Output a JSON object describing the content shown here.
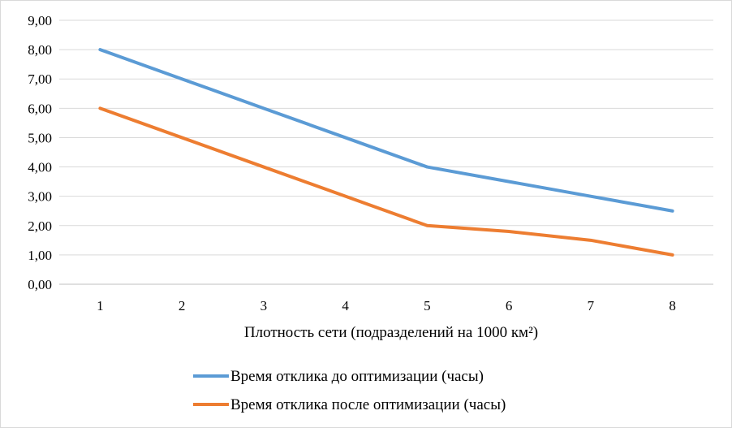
{
  "chart_data": {
    "type": "line",
    "title": "",
    "xlabel": "Плотность сети (подразделений на 1000 км²)",
    "ylabel": "",
    "x": [
      1,
      2,
      3,
      4,
      5,
      6,
      7,
      8
    ],
    "ylim": [
      0,
      9
    ],
    "yticks": [
      "0,00",
      "1,00",
      "2,00",
      "3,00",
      "4,00",
      "5,00",
      "6,00",
      "7,00",
      "8,00",
      "9,00"
    ],
    "grid": true,
    "legend_position": "bottom",
    "series": [
      {
        "name": "Время отклика до оптимизации (часы)",
        "color": "#5b9bd5",
        "values": [
          8,
          7,
          6,
          5,
          4,
          3.5,
          3,
          2.5
        ]
      },
      {
        "name": "Время отклика после оптимизации (часы)",
        "color": "#ed7d31",
        "values": [
          6,
          5,
          4,
          3,
          2,
          1.8,
          1.5,
          1
        ]
      }
    ]
  }
}
